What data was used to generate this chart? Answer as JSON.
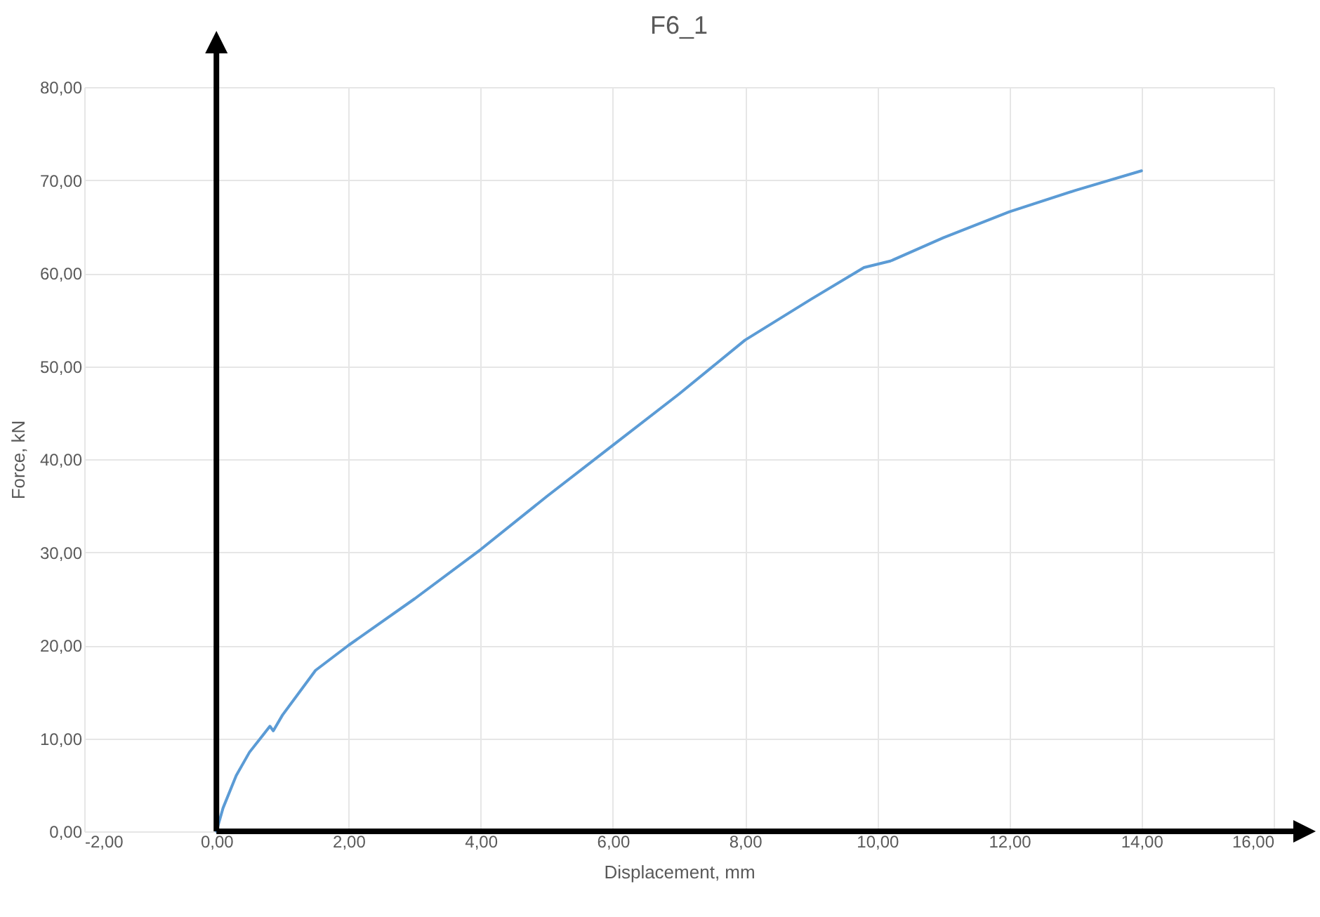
{
  "chart_data": {
    "type": "line",
    "title": "F6_1",
    "xlabel": "Displacement, mm",
    "ylabel": "Force, kN",
    "series": [
      {
        "color": "#5b9bd5",
        "x": [
          0,
          0.1,
          0.3,
          0.5,
          0.7,
          0.81,
          0.86,
          1.0,
          1.5,
          2,
          3,
          4,
          5,
          6,
          7,
          8,
          9,
          9.8,
          10.2,
          11,
          12,
          13,
          14
        ],
        "values": [
          0,
          2.5,
          6,
          8.5,
          10.3,
          11.3,
          10.8,
          12.5,
          17.3,
          20,
          25,
          30.3,
          36,
          41.5,
          47,
          52.8,
          57.2,
          60.6,
          61.3,
          63.8,
          66.6,
          68.9,
          71
        ]
      }
    ],
    "xlim": [
      -2,
      16
    ],
    "xticks": [
      {
        "value": -2,
        "label": "-2,00"
      },
      {
        "value": 0,
        "label": "0,00"
      },
      {
        "value": 2,
        "label": "2,00"
      },
      {
        "value": 4,
        "label": "4,00"
      },
      {
        "value": 6,
        "label": "6,00"
      },
      {
        "value": 8,
        "label": "8,00"
      },
      {
        "value": 10,
        "label": "10,00"
      },
      {
        "value": 12,
        "label": "12,00"
      },
      {
        "value": 14,
        "label": "14,00"
      },
      {
        "value": 16,
        "label": "16,00"
      }
    ],
    "ylim": [
      0,
      80
    ],
    "yticks": [
      {
        "value": 0,
        "label": "0,00"
      },
      {
        "value": 10,
        "label": "10,00"
      },
      {
        "value": 20,
        "label": "20,00"
      },
      {
        "value": 30,
        "label": "30,00"
      },
      {
        "value": 40,
        "label": "40,00"
      },
      {
        "value": 50,
        "label": "50,00"
      },
      {
        "value": 60,
        "label": "60,00"
      },
      {
        "value": 70,
        "label": "70,00"
      },
      {
        "value": 80,
        "label": "80,00"
      }
    ],
    "grid": true,
    "marker": "none",
    "line_style": "solid"
  }
}
